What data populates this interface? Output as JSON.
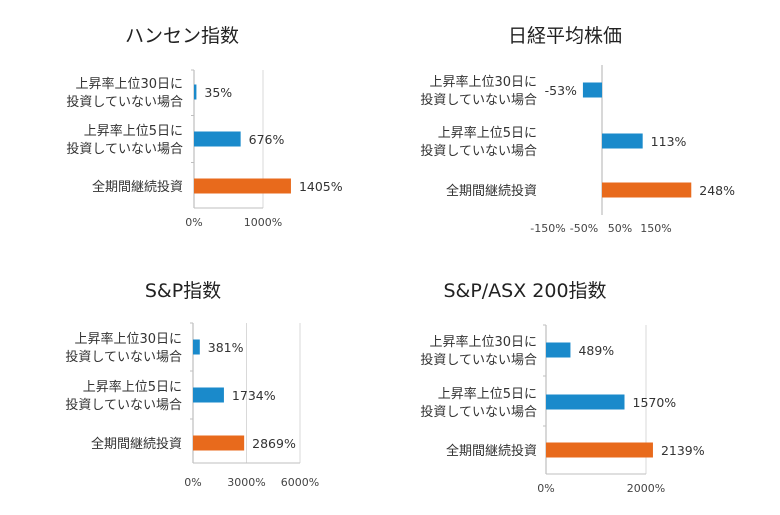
{
  "colors": {
    "blue": "#1A8ACB",
    "orange": "#E86A1C",
    "axis": "#BFBFBF",
    "grid": "#D9D9D9"
  },
  "chart_data": [
    {
      "type": "bar",
      "orientation": "horizontal",
      "title": "ハンセン指数",
      "categories": [
        [
          "上昇率上位30日に",
          "投資していない場合"
        ],
        [
          "上昇率上位5日に",
          "投資していない場合"
        ],
        [
          "全期間継続投資"
        ]
      ],
      "values": [
        35,
        676,
        1405
      ],
      "value_labels": [
        "35%",
        "676%",
        "1405%"
      ],
      "bar_colors": [
        "blue",
        "blue",
        "orange"
      ],
      "xticks": [
        0,
        1000
      ],
      "xtick_labels": [
        "0%",
        "1000%"
      ],
      "xlim": [
        0,
        1500
      ],
      "grid": true
    },
    {
      "type": "bar",
      "orientation": "horizontal",
      "title": "日経平均株価",
      "categories": [
        [
          "上昇率上位30日に",
          "投資していない場合"
        ],
        [
          "上昇率上位5日に",
          "投資していない場合"
        ],
        [
          "全期間継続投資"
        ]
      ],
      "values": [
        -53,
        113,
        248
      ],
      "value_labels": [
        "-53%",
        "113%",
        "248%"
      ],
      "bar_colors": [
        "blue",
        "blue",
        "orange"
      ],
      "xticks": [
        -150,
        -50,
        50,
        150
      ],
      "xtick_labels": [
        "-150%",
        "-50%",
        "50%",
        "150%"
      ],
      "xlim": [
        -160,
        260
      ],
      "grid": false
    },
    {
      "type": "bar",
      "orientation": "horizontal",
      "title": "S&P指数",
      "categories": [
        [
          "上昇率上位30日に",
          "投資していない場合"
        ],
        [
          "上昇率上位5日に",
          "投資していない場合"
        ],
        [
          "全期間継続投資"
        ]
      ],
      "values": [
        381,
        1734,
        2869
      ],
      "value_labels": [
        "381%",
        "1734%",
        "2869%"
      ],
      "bar_colors": [
        "blue",
        "blue",
        "orange"
      ],
      "xticks": [
        0,
        3000,
        6000
      ],
      "xtick_labels": [
        "0%",
        "3000%",
        "6000%"
      ],
      "xlim": [
        0,
        6000
      ],
      "grid": true
    },
    {
      "type": "bar",
      "orientation": "horizontal",
      "title": "S&P/ASX 200指数",
      "categories": [
        [
          "上昇率上位30日に",
          "投資していない場合"
        ],
        [
          "上昇率上位5日に",
          "投資していない場合"
        ],
        [
          "全期間継続投資"
        ]
      ],
      "values": [
        489,
        1570,
        2139
      ],
      "value_labels": [
        "489%",
        "1570%",
        "2139%"
      ],
      "bar_colors": [
        "blue",
        "blue",
        "orange"
      ],
      "xticks": [
        0,
        2000
      ],
      "xtick_labels": [
        "0%",
        "2000%"
      ],
      "xlim": [
        0,
        2150
      ],
      "grid": true
    }
  ]
}
